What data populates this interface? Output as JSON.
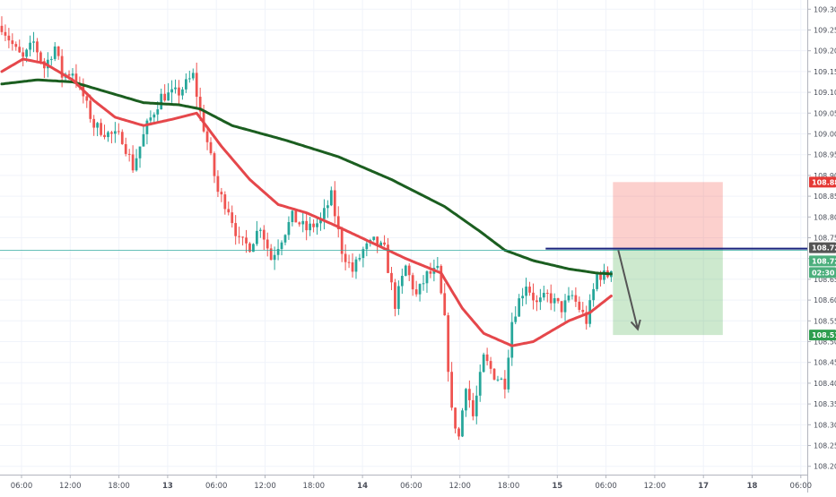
{
  "chart_data": {
    "type": "candlestick",
    "title": "",
    "ylim": [
      108.18,
      109.32
    ],
    "y_ticks": [
      "109.300",
      "109.250",
      "109.200",
      "109.150",
      "109.100",
      "109.050",
      "109.000",
      "108.950",
      "108.900",
      "108.850",
      "108.800",
      "108.750",
      "108.700",
      "108.650",
      "108.600",
      "108.550",
      "108.500",
      "108.450",
      "108.400",
      "108.350",
      "108.300",
      "108.250",
      "108.200"
    ],
    "x_ticks": [
      "06:00",
      "12:00",
      "18:00",
      "13",
      "06:00",
      "12:00",
      "18:00",
      "14",
      "06:00",
      "12:00",
      "18:00",
      "15",
      "06:00",
      "12:00",
      "17",
      "18",
      "06:00"
    ],
    "ohlc_series": {
      "approx_bars": 225,
      "anchors": [
        {
          "bar": 0,
          "price": 109.26
        },
        {
          "bar": 4,
          "price": 109.2
        },
        {
          "bar": 6,
          "price": 109.18
        },
        {
          "bar": 9,
          "price": 109.22
        },
        {
          "bar": 12,
          "price": 109.16
        },
        {
          "bar": 15,
          "price": 109.21
        },
        {
          "bar": 17,
          "price": 109.14
        },
        {
          "bar": 20,
          "price": 109.15
        },
        {
          "bar": 23,
          "price": 109.09
        },
        {
          "bar": 26,
          "price": 109.02
        },
        {
          "bar": 30,
          "price": 109.0
        },
        {
          "bar": 34,
          "price": 108.99
        },
        {
          "bar": 37,
          "price": 108.92
        },
        {
          "bar": 41,
          "price": 109.02
        },
        {
          "bar": 45,
          "price": 109.09
        },
        {
          "bar": 50,
          "price": 109.1
        },
        {
          "bar": 54,
          "price": 109.14
        },
        {
          "bar": 56,
          "price": 109.05
        },
        {
          "bar": 58,
          "price": 108.98
        },
        {
          "bar": 61,
          "price": 108.86
        },
        {
          "bar": 64,
          "price": 108.82
        },
        {
          "bar": 67,
          "price": 108.74
        },
        {
          "bar": 70,
          "price": 108.73
        },
        {
          "bar": 73,
          "price": 108.78
        },
        {
          "bar": 76,
          "price": 108.7
        },
        {
          "bar": 79,
          "price": 108.75
        },
        {
          "bar": 82,
          "price": 108.8
        },
        {
          "bar": 86,
          "price": 108.77
        },
        {
          "bar": 90,
          "price": 108.79
        },
        {
          "bar": 93,
          "price": 108.85
        },
        {
          "bar": 96,
          "price": 108.72
        },
        {
          "bar": 99,
          "price": 108.67
        },
        {
          "bar": 102,
          "price": 108.72
        },
        {
          "bar": 105,
          "price": 108.74
        },
        {
          "bar": 108,
          "price": 108.72
        },
        {
          "bar": 111,
          "price": 108.59
        },
        {
          "bar": 114,
          "price": 108.68
        },
        {
          "bar": 117,
          "price": 108.61
        },
        {
          "bar": 120,
          "price": 108.66
        },
        {
          "bar": 123,
          "price": 108.67
        },
        {
          "bar": 125,
          "price": 108.55
        },
        {
          "bar": 127,
          "price": 108.33
        },
        {
          "bar": 129,
          "price": 108.27
        },
        {
          "bar": 131,
          "price": 108.4
        },
        {
          "bar": 133,
          "price": 108.32
        },
        {
          "bar": 136,
          "price": 108.46
        },
        {
          "bar": 139,
          "price": 108.42
        },
        {
          "bar": 142,
          "price": 108.4
        },
        {
          "bar": 144,
          "price": 108.55
        },
        {
          "bar": 146,
          "price": 108.6
        },
        {
          "bar": 148,
          "price": 108.64
        },
        {
          "bar": 151,
          "price": 108.59
        },
        {
          "bar": 154,
          "price": 108.61
        },
        {
          "bar": 158,
          "price": 108.58
        },
        {
          "bar": 161,
          "price": 108.61
        },
        {
          "bar": 163,
          "price": 108.58
        },
        {
          "bar": 165,
          "price": 108.55
        },
        {
          "bar": 168,
          "price": 108.66
        },
        {
          "bar": 171,
          "price": 108.66
        },
        {
          "bar": 172,
          "price": 108.68
        }
      ]
    },
    "moving_averages": [
      {
        "color": "#1b5e20",
        "values": [
          {
            "bar": 0,
            "price": 109.12
          },
          {
            "bar": 10,
            "price": 109.13
          },
          {
            "bar": 20,
            "price": 109.125
          },
          {
            "bar": 30,
            "price": 109.1
          },
          {
            "bar": 40,
            "price": 109.075
          },
          {
            "bar": 50,
            "price": 109.07
          },
          {
            "bar": 56,
            "price": 109.06
          },
          {
            "bar": 65,
            "price": 109.02
          },
          {
            "bar": 80,
            "price": 108.985
          },
          {
            "bar": 95,
            "price": 108.945
          },
          {
            "bar": 110,
            "price": 108.89
          },
          {
            "bar": 125,
            "price": 108.825
          },
          {
            "bar": 135,
            "price": 108.765
          },
          {
            "bar": 142,
            "price": 108.72
          },
          {
            "bar": 150,
            "price": 108.695
          },
          {
            "bar": 160,
            "price": 108.675
          },
          {
            "bar": 168,
            "price": 108.665
          },
          {
            "bar": 172,
            "price": 108.663
          }
        ]
      },
      {
        "color": "#e5474b",
        "values": [
          {
            "bar": 0,
            "price": 109.15
          },
          {
            "bar": 6,
            "price": 109.18
          },
          {
            "bar": 12,
            "price": 109.17
          },
          {
            "bar": 20,
            "price": 109.13
          },
          {
            "bar": 26,
            "price": 109.08
          },
          {
            "bar": 32,
            "price": 109.04
          },
          {
            "bar": 40,
            "price": 109.02
          },
          {
            "bar": 48,
            "price": 109.035
          },
          {
            "bar": 55,
            "price": 109.05
          },
          {
            "bar": 62,
            "price": 108.97
          },
          {
            "bar": 70,
            "price": 108.89
          },
          {
            "bar": 78,
            "price": 108.83
          },
          {
            "bar": 86,
            "price": 108.81
          },
          {
            "bar": 94,
            "price": 108.78
          },
          {
            "bar": 104,
            "price": 108.74
          },
          {
            "bar": 114,
            "price": 108.7
          },
          {
            "bar": 124,
            "price": 108.665
          },
          {
            "bar": 130,
            "price": 108.58
          },
          {
            "bar": 136,
            "price": 108.52
          },
          {
            "bar": 144,
            "price": 108.49
          },
          {
            "bar": 150,
            "price": 108.5
          },
          {
            "bar": 160,
            "price": 108.55
          },
          {
            "bar": 166,
            "price": 108.57
          },
          {
            "bar": 172,
            "price": 108.61
          }
        ]
      }
    ],
    "horizontal_line": {
      "price": 108.724,
      "color": "#1a237e"
    },
    "current_price_line": {
      "price": 108.72,
      "color": "#26a69a"
    },
    "short_position": {
      "entry": 108.724,
      "stop": 108.884,
      "target": 108.516,
      "start_bar": 173,
      "end_bar": 204
    },
    "trend_arrow": {
      "from_bar": 174,
      "from_price": 108.72,
      "to_bar": 180,
      "to_price": 108.53,
      "color": "#555555"
    },
    "price_tags": [
      {
        "text": "108.884",
        "color": "#e53935"
      },
      {
        "text": "108.724",
        "color": "#555555"
      },
      {
        "text": "108.720",
        "color": "#4caf7d"
      },
      {
        "text": "02:30",
        "color": "#4caf7d"
      },
      {
        "text": "108.516",
        "color": "#2e9e4f"
      }
    ],
    "colors": {
      "up": "#26a69a",
      "down": "#ef5350",
      "grid": "#f0f3fa",
      "axis": "#b2b5be"
    }
  }
}
